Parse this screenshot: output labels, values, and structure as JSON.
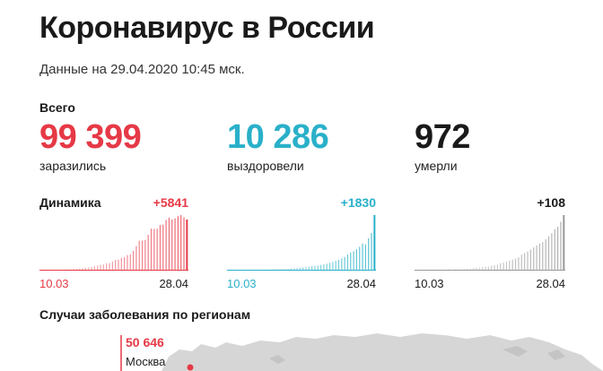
{
  "header": {
    "title": "Коронавирус в России",
    "date": "Данные на 29.04.2020 10:45 мск."
  },
  "totals": {
    "label": "Всего",
    "infected": {
      "value": "99 399",
      "label": "заразились",
      "color": "#e63946"
    },
    "recovered": {
      "value": "10 286",
      "label": "выздоровели",
      "color": "#2ab0c9"
    },
    "died": {
      "value": "972",
      "label": "умерли",
      "color": "#1a1a1a"
    }
  },
  "dynamics": {
    "label": "Динамика",
    "infected_delta": "+5841",
    "recovered_delta": "+1830",
    "died_delta": "+108",
    "start_label": "10.03",
    "end_label": "28.04"
  },
  "regions": {
    "title": "Случаи заболевания по регионам",
    "moscow_value": "50 646",
    "moscow_name": "Москва",
    "map_color": "#d6d6d6",
    "marker_color": "#e63946"
  },
  "chart_data": [
    {
      "type": "bar",
      "name": "infected",
      "x_start": "10.03",
      "x_end": "28.04",
      "y_last": 5841,
      "color": "#e63946",
      "values": [
        3,
        8,
        10,
        11,
        14,
        17,
        20,
        28,
        35,
        50,
        60,
        80,
        110,
        160,
        190,
        230,
        270,
        300,
        420,
        490,
        580,
        600,
        750,
        760,
        960,
        1150,
        1170,
        1380,
        1460,
        1700,
        1790,
        2200,
        2760,
        3380,
        3390,
        3470,
        4070,
        4790,
        4740,
        4770,
        5210,
        5240,
        5800,
        6060,
        5850,
        5970,
        6230,
        6360,
        6100,
        5841
      ]
    },
    {
      "type": "bar",
      "name": "recovered",
      "x_start": "10.03",
      "x_end": "28.04",
      "y_last": 1830,
      "color": "#2ab0c9",
      "values": [
        0,
        0,
        0,
        0,
        0,
        0,
        1,
        2,
        2,
        3,
        4,
        5,
        6,
        8,
        10,
        12,
        15,
        18,
        20,
        25,
        30,
        45,
        50,
        60,
        70,
        80,
        90,
        100,
        120,
        130,
        140,
        160,
        180,
        200,
        230,
        260,
        300,
        330,
        380,
        430,
        510,
        580,
        620,
        690,
        770,
        880,
        850,
        1050,
        1230,
        1830
      ]
    },
    {
      "type": "bar",
      "name": "died",
      "x_start": "10.03",
      "x_end": "28.04",
      "y_last": 108,
      "color": "#999999",
      "values": [
        0,
        0,
        0,
        0,
        0,
        0,
        0,
        0,
        0,
        0,
        0,
        1,
        0,
        1,
        1,
        1,
        1,
        2,
        2,
        3,
        4,
        4,
        5,
        6,
        6,
        8,
        9,
        10,
        13,
        14,
        16,
        18,
        20,
        22,
        25,
        30,
        33,
        36,
        40,
        44,
        48,
        52,
        55,
        60,
        66,
        72,
        80,
        85,
        95,
        108
      ]
    }
  ]
}
